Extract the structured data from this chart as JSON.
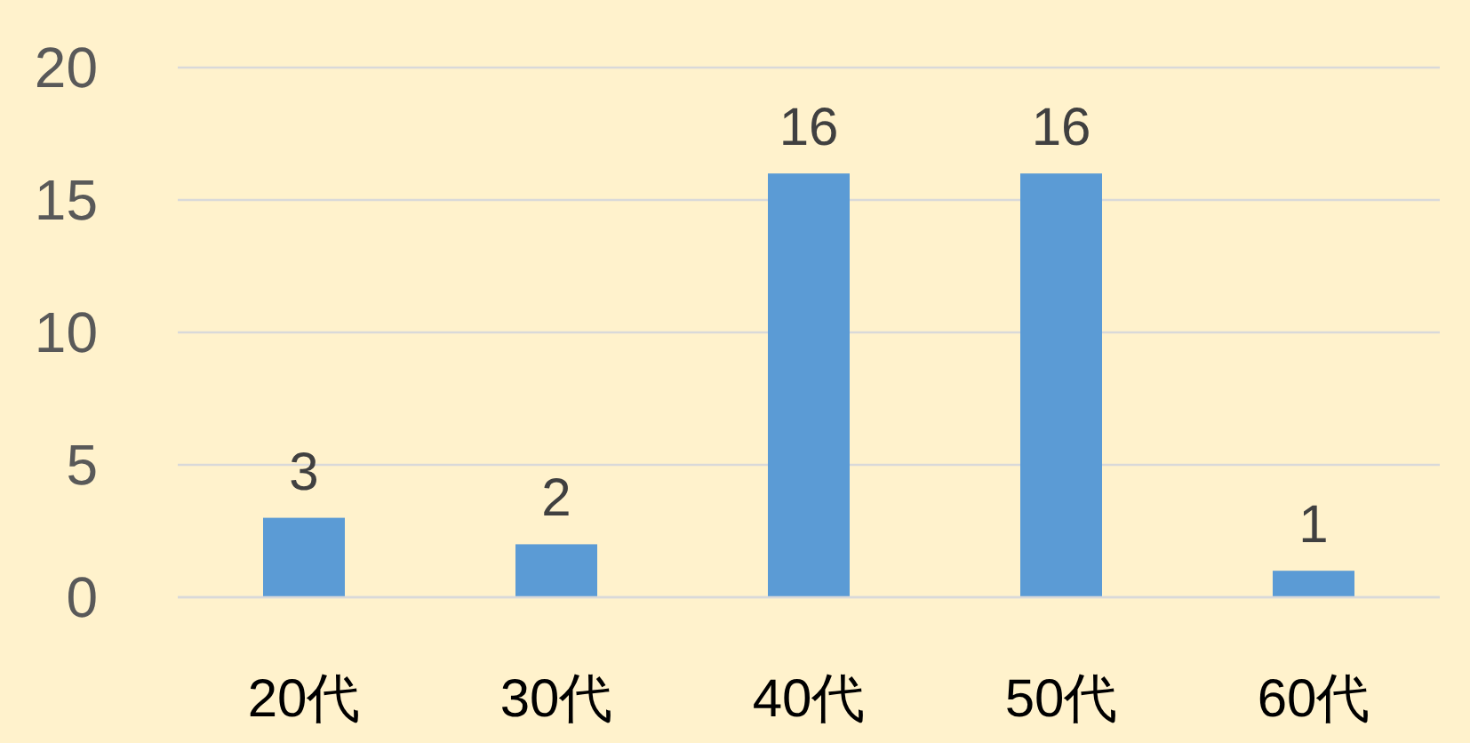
{
  "chart_data": {
    "type": "bar",
    "categories": [
      "20代",
      "30代",
      "40代",
      "50代",
      "60代"
    ],
    "values": [
      3,
      2,
      16,
      16,
      1
    ],
    "color": "#5b9bd5",
    "ylim": [
      0,
      20
    ],
    "yticks": [
      0,
      5,
      10,
      15,
      20
    ],
    "grid": "y",
    "data_labels": true
  }
}
